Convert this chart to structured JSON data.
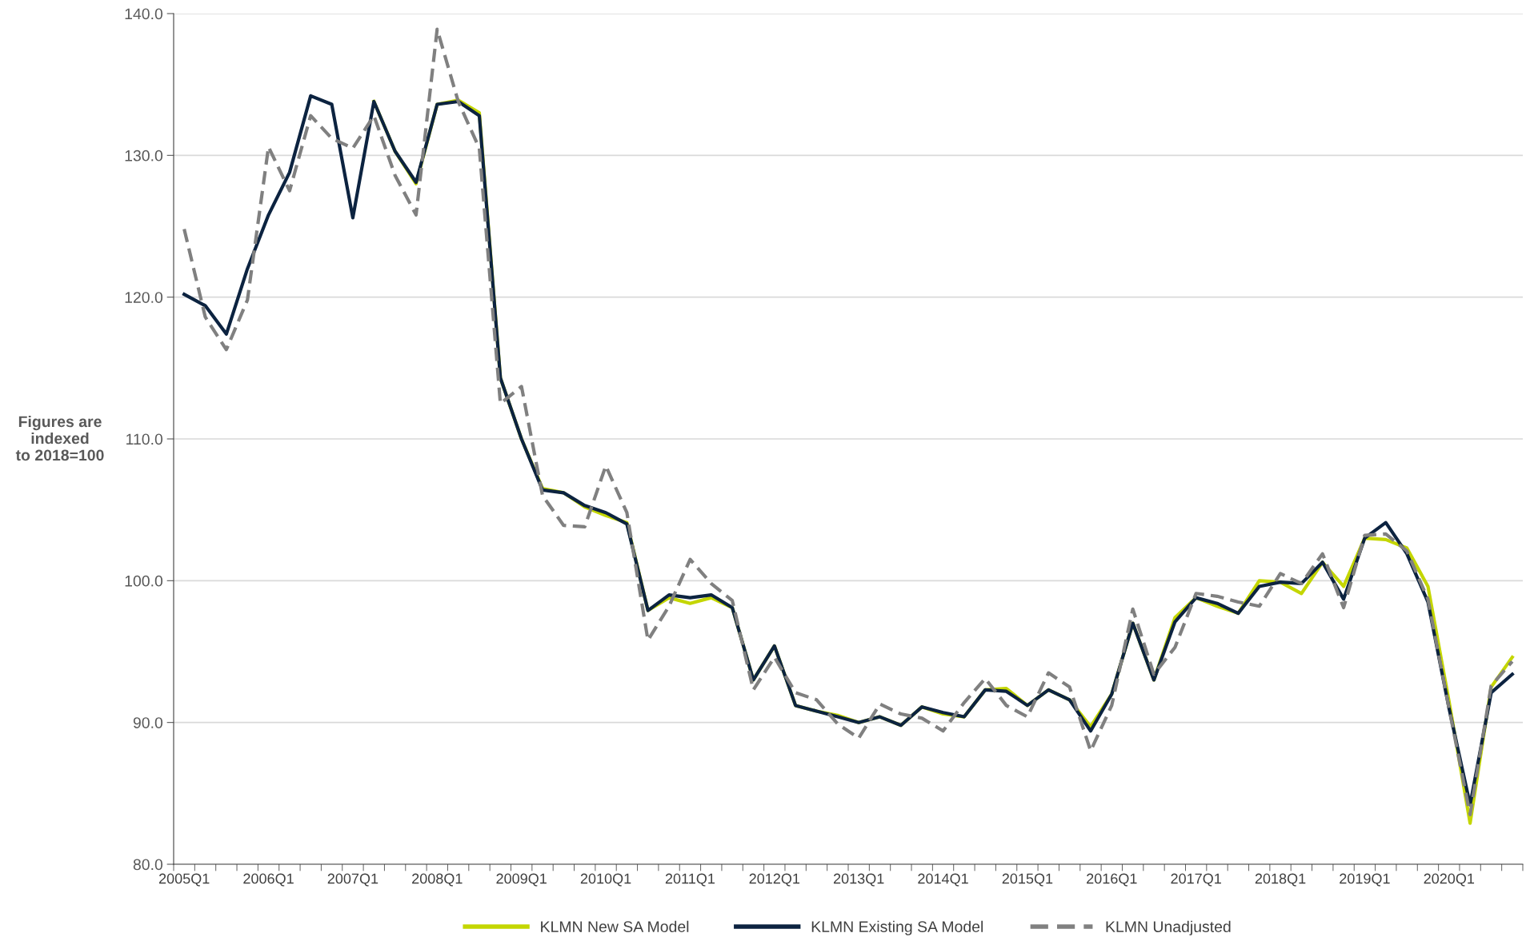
{
  "chart_data": {
    "type": "line",
    "ylabel": "Figures are\nindexed\nto 2018=100",
    "categories": [
      "2005Q1",
      null,
      null,
      null,
      "2006Q1",
      null,
      null,
      null,
      "2007Q1",
      null,
      null,
      null,
      "2008Q1",
      null,
      null,
      null,
      "2009Q1",
      null,
      null,
      null,
      "2010Q1",
      null,
      null,
      null,
      "2011Q1",
      null,
      null,
      null,
      "2012Q1",
      null,
      null,
      null,
      "2013Q1",
      null,
      null,
      null,
      "2014Q1",
      null,
      null,
      null,
      "2015Q1",
      null,
      null,
      null,
      "2016Q1",
      null,
      null,
      null,
      "2017Q1",
      null,
      null,
      null,
      "2018Q1",
      null,
      null,
      null,
      "2019Q1",
      null,
      null,
      null,
      "2020Q1",
      null,
      null,
      null
    ],
    "series": [
      {
        "name": "KLMN New SA Model",
        "color": "#c4d600",
        "line_style": "solid",
        "values": [
          null,
          null,
          null,
          null,
          null,
          null,
          null,
          null,
          null,
          133.8,
          130.3,
          128.0,
          133.6,
          133.9,
          133.0,
          114.3,
          110.0,
          106.5,
          106.2,
          105.2,
          104.6,
          104.1,
          97.9,
          98.8,
          98.4,
          98.8,
          98.1,
          93.0,
          95.4,
          91.2,
          90.8,
          90.5,
          90.0,
          90.4,
          89.8,
          91.1,
          90.6,
          90.4,
          92.3,
          92.4,
          91.2,
          92.3,
          91.6,
          89.7,
          92.0,
          97.0,
          93.0,
          97.4,
          98.8,
          98.2,
          97.7,
          100.0,
          99.9,
          99.1,
          101.3,
          99.6,
          103.0,
          102.9,
          102.3,
          99.6,
          91.5,
          82.9,
          92.5,
          94.6
        ]
      },
      {
        "name": "KLMN Existing SA Model",
        "color": "#0c2340",
        "line_style": "solid",
        "values": [
          120.2,
          119.4,
          117.4,
          122.0,
          125.8,
          128.8,
          134.2,
          133.6,
          125.6,
          133.8,
          130.3,
          128.1,
          133.6,
          133.8,
          132.8,
          114.3,
          110.0,
          106.4,
          106.2,
          105.3,
          104.8,
          104.0,
          97.9,
          99.0,
          98.8,
          99.0,
          98.1,
          93.0,
          95.4,
          91.2,
          90.8,
          90.4,
          90.0,
          90.4,
          89.8,
          91.1,
          90.7,
          90.4,
          92.3,
          92.2,
          91.2,
          92.3,
          91.6,
          89.4,
          92.0,
          97.0,
          93.0,
          97.1,
          98.8,
          98.4,
          97.7,
          99.6,
          99.9,
          99.8,
          101.3,
          98.7,
          103.0,
          104.1,
          101.9,
          98.5,
          91.0,
          84.2,
          92.1,
          93.4
        ]
      },
      {
        "name": "KLMN Unadjusted",
        "color": "#808080",
        "line_style": "dashed",
        "values": [
          124.8,
          118.6,
          116.3,
          119.8,
          130.6,
          127.5,
          132.8,
          131.2,
          130.5,
          132.8,
          128.6,
          125.8,
          138.9,
          133.8,
          130.5,
          112.5,
          113.7,
          106.0,
          103.9,
          103.8,
          108.1,
          104.8,
          95.8,
          98.2,
          101.5,
          99.8,
          98.6,
          92.3,
          94.6,
          92.1,
          91.6,
          89.9,
          88.9,
          91.3,
          90.6,
          90.3,
          89.4,
          91.4,
          93.1,
          91.2,
          90.4,
          93.5,
          92.5,
          88.0,
          91.2,
          98.0,
          93.4,
          95.3,
          99.1,
          98.9,
          98.5,
          98.2,
          100.5,
          99.8,
          101.9,
          98.1,
          103.2,
          103.3,
          102.1,
          98.7,
          91.0,
          83.5,
          92.6,
          94.3
        ]
      }
    ],
    "ylim": [
      80,
      140
    ],
    "yticks": [
      {
        "value": 80,
        "label": "80.0"
      },
      {
        "value": 90,
        "label": "90.0"
      },
      {
        "value": 100,
        "label": "100.0"
      },
      {
        "value": 110,
        "label": "110.0"
      },
      {
        "value": 120,
        "label": "120.0"
      },
      {
        "value": 130,
        "label": "130.0"
      },
      {
        "value": 140,
        "label": "140.0"
      }
    ],
    "grid": "y",
    "legend": "bottom"
  }
}
